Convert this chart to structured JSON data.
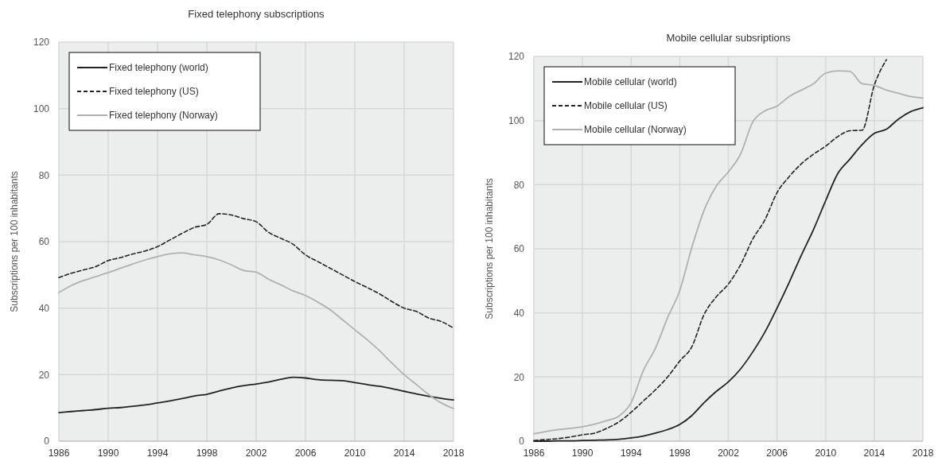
{
  "chart_data": [
    {
      "type": "line",
      "title": "Fixed telephony subscriptions",
      "ylabel": "Subscriptions per 100 inhabitants",
      "x": [
        1986,
        1987,
        1988,
        1989,
        1990,
        1991,
        1992,
        1993,
        1994,
        1995,
        1996,
        1997,
        1998,
        1999,
        2000,
        2001,
        2002,
        2003,
        2004,
        2005,
        2006,
        2007,
        2008,
        2009,
        2010,
        2011,
        2012,
        2013,
        2014,
        2015,
        2016,
        2017,
        2018
      ],
      "xlim": [
        1986,
        2018
      ],
      "xticks": [
        1986,
        1990,
        1994,
        1998,
        2002,
        2006,
        2010,
        2014,
        2018
      ],
      "ylim": [
        0,
        120
      ],
      "yticks": [
        0,
        20,
        40,
        60,
        80,
        100,
        120
      ],
      "grid": true,
      "legend": "top left",
      "series": [
        {
          "name": "Fixed telephony (world)",
          "color": "#222222",
          "line_style": "solid",
          "values": [
            8.6,
            8.9,
            9.2,
            9.5,
            9.9,
            10.1,
            10.5,
            10.9,
            11.5,
            12.1,
            12.8,
            13.6,
            14.1,
            15.1,
            16.0,
            16.7,
            17.2,
            17.8,
            18.6,
            19.2,
            19.0,
            18.5,
            18.3,
            18.2,
            17.6,
            17.0,
            16.5,
            15.8,
            15.0,
            14.2,
            13.5,
            12.9,
            12.4
          ]
        },
        {
          "name": "Fixed telephony (US)",
          "color": "#222222",
          "line_style": "dashed",
          "values": [
            49.2,
            50.5,
            51.5,
            52.5,
            54.3,
            55.2,
            56.3,
            57.2,
            58.5,
            60.5,
            62.5,
            64.3,
            65.2,
            68.4,
            68.0,
            66.9,
            66.0,
            62.8,
            61.0,
            59.2,
            56.0,
            54.0,
            52.0,
            50.0,
            48.0,
            46.2,
            44.3,
            42.0,
            40.0,
            39.0,
            37.0,
            36.0,
            34.0
          ]
        },
        {
          "name": "Fixed telephony (Norway)",
          "color": "#b0b0b0",
          "line_style": "solid",
          "values": [
            44.7,
            46.8,
            48.3,
            49.5,
            50.7,
            52.0,
            53.3,
            54.5,
            55.5,
            56.3,
            56.6,
            56.0,
            55.5,
            54.5,
            53.0,
            51.3,
            50.8,
            48.7,
            47.0,
            45.2,
            43.8,
            41.8,
            39.5,
            36.5,
            33.5,
            30.5,
            27.2,
            23.5,
            20.0,
            17.0,
            14.0,
            11.5,
            9.8
          ]
        }
      ]
    },
    {
      "type": "line",
      "title": "Mobile cellular subsriptions",
      "ylabel": "Subscriptions per 100 inhabitants",
      "x": [
        1986,
        1987,
        1988,
        1989,
        1990,
        1991,
        1992,
        1993,
        1994,
        1995,
        1996,
        1997,
        1998,
        1999,
        2000,
        2001,
        2002,
        2003,
        2004,
        2005,
        2006,
        2007,
        2008,
        2009,
        2010,
        2011,
        2012,
        2013,
        2014,
        2015,
        2016,
        2017,
        2018
      ],
      "xlim": [
        1986,
        2018
      ],
      "xticks": [
        1986,
        1990,
        1994,
        1998,
        2002,
        2006,
        2010,
        2014,
        2018
      ],
      "ylim": [
        0,
        120
      ],
      "yticks": [
        0,
        20,
        40,
        60,
        80,
        100,
        120
      ],
      "grid": true,
      "legend": "top left",
      "series": [
        {
          "name": "Mobile cellular (world)",
          "color": "#222222",
          "line_style": "solid",
          "values": [
            0.0,
            0.0,
            0.1,
            0.1,
            0.2,
            0.3,
            0.4,
            0.6,
            1.0,
            1.6,
            2.5,
            3.6,
            5.2,
            8.0,
            12.0,
            15.5,
            18.5,
            22.5,
            27.8,
            34.0,
            41.5,
            49.5,
            58.0,
            66.0,
            75.0,
            83.5,
            88.0,
            92.5,
            96.0,
            97.3,
            100.5,
            102.8,
            104.0
          ]
        },
        {
          "name": "Mobile cellular (US)",
          "color": "#222222",
          "line_style": "dashed",
          "values": [
            0.2,
            0.5,
            0.8,
            1.3,
            2.0,
            2.5,
            4.0,
            6.0,
            9.0,
            12.5,
            16.0,
            20.0,
            25.0,
            29.5,
            39.5,
            45.0,
            49.0,
            55.0,
            63.0,
            69.0,
            77.5,
            82.5,
            86.5,
            89.5,
            92.0,
            95.0,
            96.8,
            97.0,
            111.0,
            119.0,
            null,
            null,
            null
          ]
        },
        {
          "name": "Mobile cellular (Norway)",
          "color": "#b0b0b0",
          "line_style": "solid",
          "values": [
            2.3,
            3.0,
            3.6,
            4.0,
            4.5,
            5.3,
            6.4,
            7.8,
            12.0,
            22.0,
            29.0,
            38.5,
            47.0,
            60.5,
            72.0,
            79.5,
            84.0,
            89.5,
            99.5,
            103.0,
            104.5,
            107.5,
            109.5,
            111.5,
            114.8,
            115.5,
            115.3,
            111.5,
            111.0,
            109.5,
            108.5,
            107.5,
            107.0
          ]
        }
      ]
    }
  ]
}
